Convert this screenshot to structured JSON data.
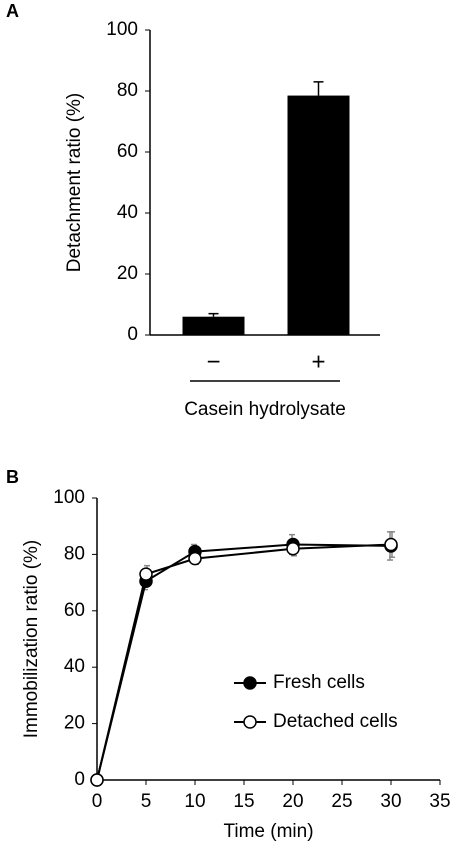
{
  "chart_data": [
    {
      "type": "bar",
      "panel_label": "A",
      "y_label": "Detachment ratio (%)",
      "x_label": "Casein hydrolysate",
      "categories": [
        "−",
        "+"
      ],
      "values": [
        6,
        78.5
      ],
      "errors": [
        1,
        4.5
      ],
      "color": "#000000",
      "ylim": [
        0,
        100
      ],
      "yticks": [
        0,
        20,
        40,
        60,
        80,
        100
      ]
    },
    {
      "type": "line",
      "panel_label": "B",
      "y_label": "Immobilization ratio (%)",
      "x_label": "Time (min)",
      "x": [
        0,
        5,
        10,
        20,
        30
      ],
      "series": [
        {
          "name": "Fresh cells",
          "color": "#000000",
          "marker_fill": "#000000",
          "values": [
            0,
            70.5,
            81,
            83.5,
            83
          ],
          "errors": [
            0,
            3,
            2.5,
            3.5,
            5
          ]
        },
        {
          "name": "Detached cells",
          "color": "#000000",
          "marker_fill": "#ffffff",
          "values": [
            0,
            73,
            78.5,
            82,
            83.5
          ],
          "errors": [
            0,
            3,
            2,
            2.5,
            4.5
          ]
        }
      ],
      "error_color": "#888888",
      "legend": "lower right",
      "xlim": [
        0,
        35
      ],
      "xticks": [
        0,
        5,
        10,
        15,
        20,
        25,
        30,
        35
      ],
      "ylim": [
        0,
        100
      ],
      "yticks": [
        0,
        20,
        40,
        60,
        80,
        100
      ]
    }
  ]
}
